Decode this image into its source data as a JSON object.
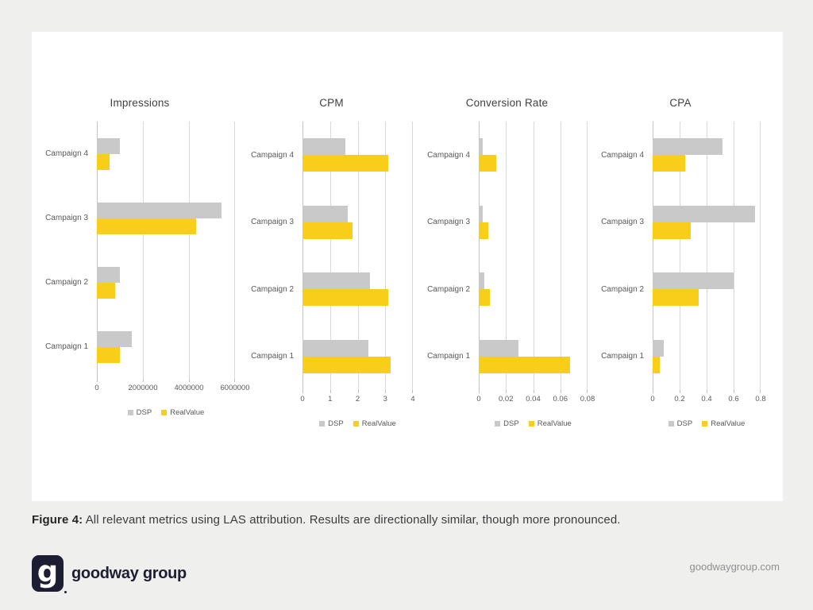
{
  "caption": {
    "label": "Figure 4:",
    "text": " All relevant metrics using LAS attribution. Results are directionally similar, though more pronounced."
  },
  "footer": {
    "logo_glyph": "g",
    "logo_text": "goodway group",
    "website": "goodwaygroup.com"
  },
  "colors": {
    "dsp": "#C9C9C9",
    "realvalue": "#F9CE1B",
    "brand_navy": "#1D1D33",
    "gridline": "#D9D9D9",
    "background": "#EFEFEE",
    "card": "#FFFFFF"
  },
  "legend": {
    "dsp_label": "DSP",
    "realvalue_label": "RealValue",
    "position": "bottom"
  },
  "chart_data": [
    {
      "type": "bar",
      "orientation": "horizontal",
      "title": "Impressions",
      "category_order": "top_to_bottom",
      "categories": [
        "Campaign 4",
        "Campaign 3",
        "Campaign 2",
        "Campaign 1"
      ],
      "series": [
        {
          "name": "DSP",
          "color": "#C9C9C9",
          "values": [
            1000000,
            5400000,
            1000000,
            1500000
          ]
        },
        {
          "name": "RealValue",
          "color": "#F9CE1B",
          "values": [
            550000,
            4300000,
            800000,
            1000000
          ]
        }
      ],
      "xlim": [
        0,
        6000000
      ],
      "ticks": [
        {
          "value": 0,
          "label": "0"
        },
        {
          "value": 2000000,
          "label": "2000000"
        },
        {
          "value": 4000000,
          "label": "4000000"
        },
        {
          "value": 6000000,
          "label": "6000000"
        }
      ],
      "grid": true
    },
    {
      "type": "bar",
      "orientation": "horizontal",
      "title": "CPM",
      "category_order": "top_to_bottom",
      "categories": [
        "Campaign 4",
        "Campaign 3",
        "Campaign 2",
        "Campaign 1"
      ],
      "series": [
        {
          "name": "DSP",
          "color": "#C9C9C9",
          "values": [
            1.55,
            1.65,
            2.45,
            2.4
          ]
        },
        {
          "name": "RealValue",
          "color": "#F9CE1B",
          "values": [
            3.1,
            1.8,
            3.1,
            3.2
          ]
        }
      ],
      "xlim": [
        0,
        4
      ],
      "ticks": [
        {
          "value": 0,
          "label": "0"
        },
        {
          "value": 1,
          "label": "1"
        },
        {
          "value": 2,
          "label": "2"
        },
        {
          "value": 3,
          "label": "3"
        },
        {
          "value": 4,
          "label": "4"
        }
      ],
      "grid": true
    },
    {
      "type": "bar",
      "orientation": "horizontal",
      "title": "Conversion Rate",
      "category_order": "top_to_bottom",
      "categories": [
        "Campaign 4",
        "Campaign 3",
        "Campaign 2",
        "Campaign 1"
      ],
      "series": [
        {
          "name": "DSP",
          "color": "#C9C9C9",
          "values": [
            0.003,
            0.003,
            0.004,
            0.029
          ]
        },
        {
          "name": "RealValue",
          "color": "#F9CE1B",
          "values": [
            0.013,
            0.007,
            0.008,
            0.067
          ]
        }
      ],
      "xlim": [
        0,
        0.08
      ],
      "ticks": [
        {
          "value": 0,
          "label": "0"
        },
        {
          "value": 0.02,
          "label": "0.02"
        },
        {
          "value": 0.04,
          "label": "0.04"
        },
        {
          "value": 0.06,
          "label": "0.06"
        },
        {
          "value": 0.08,
          "label": "0.08"
        }
      ],
      "grid": true
    },
    {
      "type": "bar",
      "orientation": "horizontal",
      "title": "CPA",
      "category_order": "top_to_bottom",
      "categories": [
        "Campaign 4",
        "Campaign 3",
        "Campaign 2",
        "Campaign 1"
      ],
      "series": [
        {
          "name": "DSP",
          "color": "#C9C9C9",
          "values": [
            0.52,
            0.76,
            0.6,
            0.08
          ]
        },
        {
          "name": "RealValue",
          "color": "#F9CE1B",
          "values": [
            0.24,
            0.28,
            0.34,
            0.05
          ]
        }
      ],
      "xlim": [
        0,
        0.8
      ],
      "ticks": [
        {
          "value": 0,
          "label": "0"
        },
        {
          "value": 0.2,
          "label": "0.2"
        },
        {
          "value": 0.4,
          "label": "0.4"
        },
        {
          "value": 0.6,
          "label": "0.6"
        },
        {
          "value": 0.8,
          "label": "0.8"
        }
      ],
      "grid": true
    }
  ]
}
